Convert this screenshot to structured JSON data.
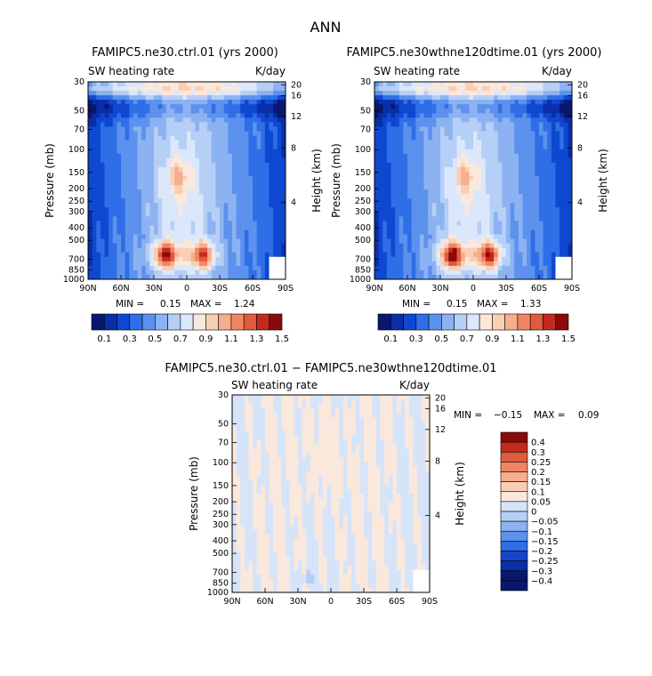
{
  "figure": {
    "title": "ANN"
  },
  "colors": {
    "levels_full": [
      "#08186e",
      "#0a2ea8",
      "#0f48d0",
      "#2e6ee6",
      "#5d91ee",
      "#8cb2f2",
      "#b6cff6",
      "#dbe7fb",
      "#fbe8dc",
      "#f9cfb4",
      "#f6ae8c",
      "#f18563",
      "#e05a3e",
      "#c22a1e",
      "#8a0a0a"
    ],
    "levels_diff": [
      "#08186e",
      "#0a2ea8",
      "#1645cc",
      "#2e6ee6",
      "#5d91ee",
      "#8cb2f2",
      "#b6cff6",
      "#d6e4f9",
      "#fbe8dc",
      "#f9cfb4",
      "#f6ae8c",
      "#f18563",
      "#e05a3e",
      "#c22a1e",
      "#8a0a0a"
    ]
  },
  "chart_data": [
    {
      "type": "heatmap",
      "title": "FAMIPC5.ne30.ctrl.01 (yrs 2000)",
      "subtitle_left": "SW heating rate",
      "subtitle_right": "K/day",
      "xlabel": "",
      "ylabel": "Pressure (mb)",
      "ylabel_right": "Height (km)",
      "x_ticks": [
        "90N",
        "60N",
        "30N",
        "0",
        "30S",
        "60S",
        "90S"
      ],
      "y_ticks": [
        "30",
        "50",
        "70",
        "100",
        "150",
        "200",
        "250",
        "300",
        "400",
        "500",
        "700",
        "850",
        "1000"
      ],
      "height_ticks": [
        "20",
        "16",
        "12",
        "8",
        "4"
      ],
      "min_label": "MIN =",
      "min": "0.15",
      "max_label": "MAX =",
      "max": "1.24",
      "levels": [
        0.1,
        0.3,
        0.5,
        0.7,
        0.9,
        1.1,
        1.3,
        1.5
      ],
      "colorbar_labels": [
        "0.1",
        "0.3",
        "0.5",
        "0.7",
        "0.9",
        "1.1",
        "1.3",
        "1.5"
      ],
      "peak": 1.24
    },
    {
      "type": "heatmap",
      "title": "FAMIPC5.ne30wthne120dtime.01 (yrs 2000)",
      "subtitle_left": "SW heating rate",
      "subtitle_right": "K/day",
      "xlabel": "",
      "ylabel": "Pressure (mb)",
      "ylabel_right": "Height (km)",
      "x_ticks": [
        "90N",
        "60N",
        "30N",
        "0",
        "30S",
        "60S",
        "90S"
      ],
      "y_ticks": [
        "30",
        "50",
        "70",
        "100",
        "150",
        "200",
        "250",
        "300",
        "400",
        "500",
        "700",
        "850",
        "1000"
      ],
      "height_ticks": [
        "20",
        "16",
        "12",
        "8",
        "4"
      ],
      "min_label": "MIN =",
      "min": "0.15",
      "max_label": "MAX =",
      "max": "1.33",
      "levels": [
        0.1,
        0.3,
        0.5,
        0.7,
        0.9,
        1.1,
        1.3,
        1.5
      ],
      "colorbar_labels": [
        "0.1",
        "0.3",
        "0.5",
        "0.7",
        "0.9",
        "1.1",
        "1.3",
        "1.5"
      ],
      "peak": 1.33
    },
    {
      "type": "heatmap",
      "title": "FAMIPC5.ne30.ctrl.01 − FAMIPC5.ne30wthne120dtime.01",
      "subtitle_left": "SW heating rate",
      "subtitle_right": "K/day",
      "xlabel": "",
      "ylabel": "Pressure (mb)",
      "ylabel_right": "Height (km)",
      "x_ticks": [
        "90N",
        "60N",
        "30N",
        "0",
        "30S",
        "60S",
        "90S"
      ],
      "y_ticks": [
        "30",
        "50",
        "70",
        "100",
        "150",
        "200",
        "250",
        "300",
        "400",
        "500",
        "700",
        "850",
        "1000"
      ],
      "height_ticks": [
        "20",
        "16",
        "12",
        "8",
        "4"
      ],
      "min_label": "MIN =",
      "min": "−0.15",
      "max_label": "MAX =",
      "max": "0.09",
      "levels": [
        -0.4,
        -0.3,
        -0.25,
        -0.2,
        -0.15,
        -0.1,
        -0.05,
        0,
        0.05,
        0.1,
        0.15,
        0.2,
        0.25,
        0.3,
        0.4
      ],
      "colorbar_labels": [
        "0.4",
        "0.3",
        "0.25",
        "0.2",
        "0.15",
        "0.1",
        "0.05",
        "0",
        "−0.05",
        "−0.1",
        "−0.15",
        "−0.2",
        "−0.25",
        "−0.3",
        "−0.4"
      ]
    }
  ]
}
